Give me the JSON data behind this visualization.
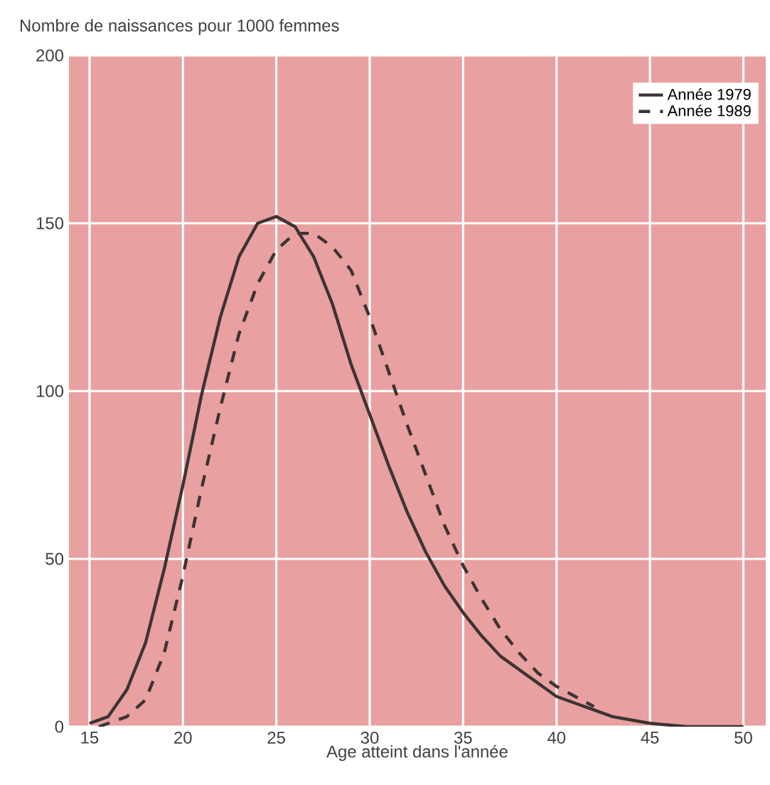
{
  "chart_data": {
    "type": "line",
    "title": "Nombre de naissances pour 1000 femmes",
    "xlabel": "Age atteint dans l'année",
    "x": [
      15,
      16,
      17,
      18,
      19,
      20,
      21,
      22,
      23,
      24,
      25,
      26,
      27,
      28,
      29,
      30,
      31,
      32,
      33,
      34,
      35,
      36,
      37,
      38,
      39,
      40,
      41,
      42,
      43,
      44,
      45,
      46,
      47,
      48,
      49,
      50
    ],
    "series": [
      {
        "name": "Année  1979",
        "color": "#3d3333",
        "line_style": "solid",
        "values": [
          1,
          3,
          11,
          25,
          47,
          72,
          99,
          122,
          140,
          150,
          152,
          149,
          140,
          126,
          108,
          93,
          78,
          64,
          52,
          42,
          34,
          27,
          21,
          17,
          13,
          9,
          7,
          5,
          3,
          2,
          1,
          0.5,
          0,
          0,
          0,
          0
        ]
      },
      {
        "name": "Année  1989",
        "color": "#3d3333",
        "line_style": "dashed",
        "x": [
          15.5,
          16,
          17,
          18,
          19,
          20,
          21,
          22,
          23,
          24,
          25,
          26,
          27,
          28,
          29,
          30,
          31,
          32,
          33,
          34,
          35,
          36,
          37,
          38,
          39,
          40,
          41,
          42
        ],
        "values": [
          0,
          1,
          3,
          8,
          22,
          45,
          71,
          95,
          117,
          132,
          142,
          147,
          147,
          143,
          136,
          122,
          106,
          90,
          75,
          60,
          48,
          38,
          29,
          22,
          16,
          12,
          9,
          6
        ]
      }
    ],
    "xlim": [
      13.9,
      51.2
    ],
    "ylim": [
      0,
      200
    ],
    "xticks": [
      15,
      20,
      25,
      30,
      35,
      40,
      45,
      50
    ],
    "yticks": [
      0,
      50,
      100,
      150,
      200
    ],
    "grid": true,
    "legend": "top right"
  }
}
